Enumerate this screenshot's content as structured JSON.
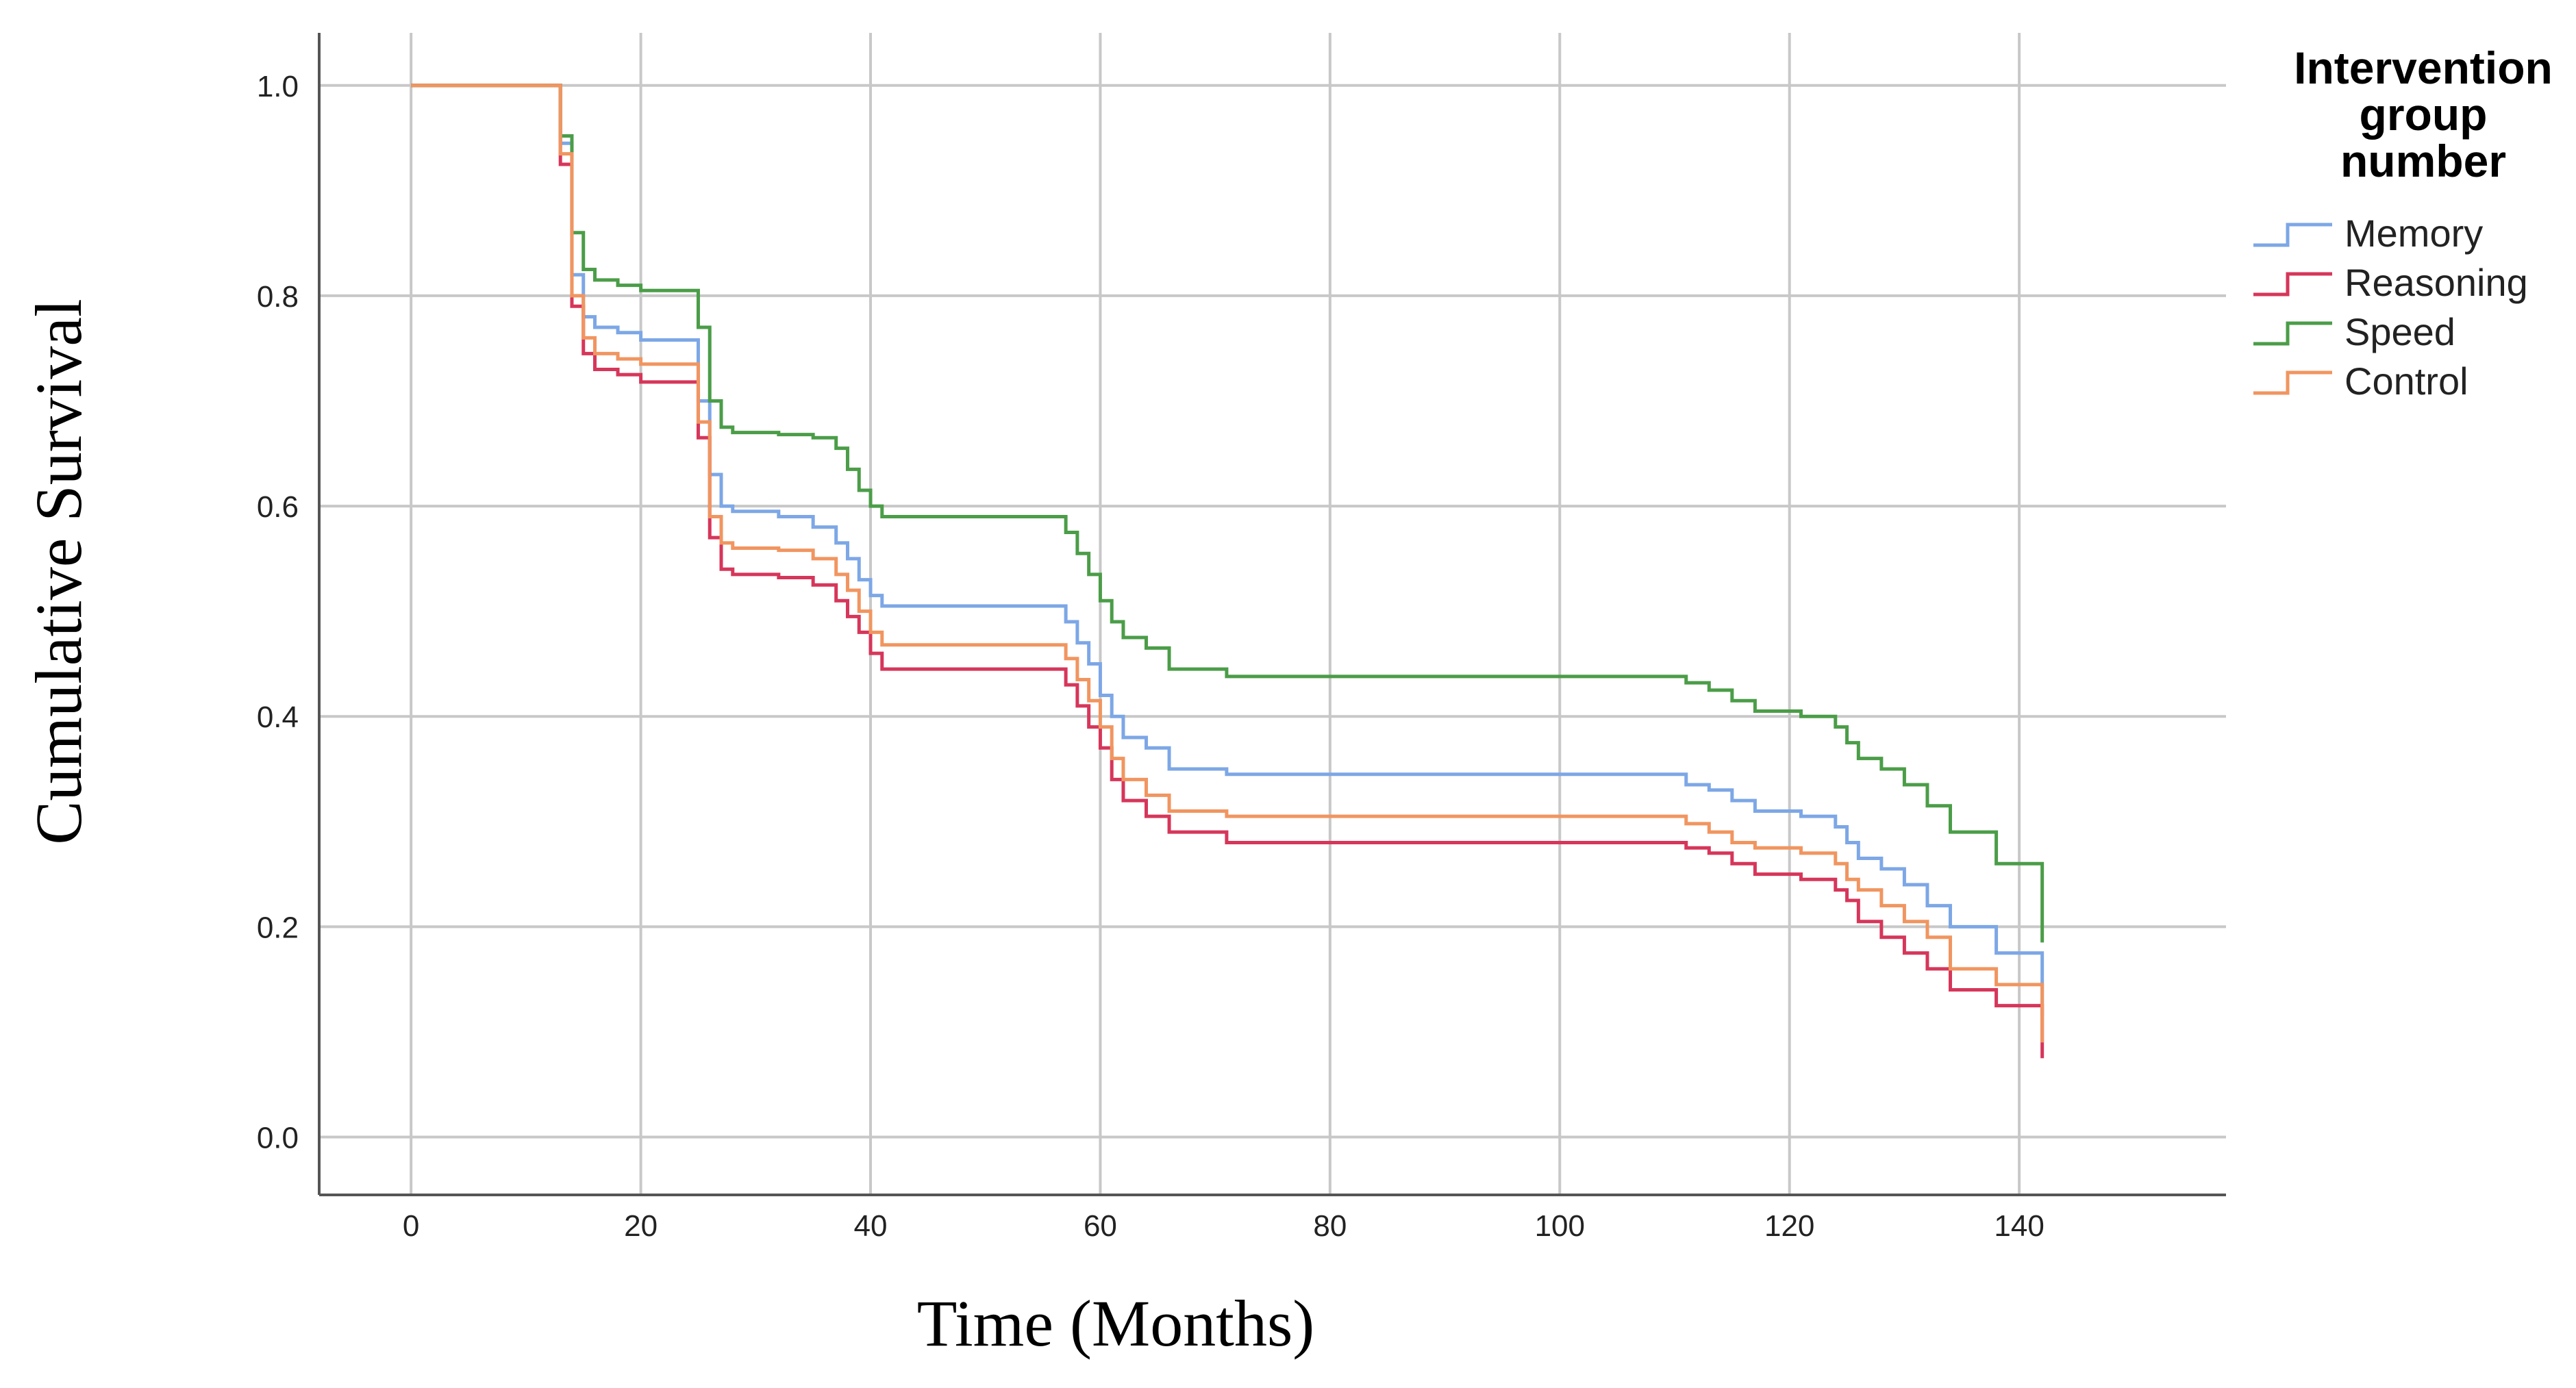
{
  "chart_data": {
    "type": "line",
    "step": true,
    "title": "",
    "xlabel": "Time (Months)",
    "ylabel": "Cumulative Survival",
    "xlim": [
      -8,
      158
    ],
    "ylim": [
      -0.055,
      1.05
    ],
    "xticks": [
      0,
      20,
      40,
      60,
      80,
      100,
      120,
      140
    ],
    "yticks": [
      0.0,
      0.2,
      0.4,
      0.6,
      0.8,
      1.0
    ],
    "xtick_labels": [
      "0",
      "20",
      "40",
      "60",
      "80",
      "100",
      "120",
      "140"
    ],
    "ytick_labels": [
      "0.0",
      "0.2",
      "0.4",
      "0.6",
      "0.8",
      "1.0"
    ],
    "grid": true,
    "legend": {
      "title_lines": [
        "Intervention",
        "group",
        "number"
      ],
      "placement": "right"
    },
    "series": [
      {
        "name": "Memory",
        "color": "#7da7e6",
        "x": [
          0,
          13,
          14,
          15,
          16,
          18,
          20,
          25,
          26,
          27,
          28,
          32,
          35,
          37,
          38,
          39,
          40,
          41,
          57,
          58,
          59,
          60,
          61,
          62,
          64,
          66,
          71,
          111,
          113,
          115,
          117,
          121,
          124,
          125,
          126,
          128,
          130,
          132,
          134,
          138,
          142
        ],
        "y": [
          1.0,
          0.945,
          0.82,
          0.78,
          0.77,
          0.765,
          0.758,
          0.7,
          0.63,
          0.6,
          0.595,
          0.59,
          0.58,
          0.565,
          0.55,
          0.53,
          0.515,
          0.505,
          0.49,
          0.47,
          0.45,
          0.42,
          0.4,
          0.38,
          0.37,
          0.35,
          0.345,
          0.335,
          0.33,
          0.32,
          0.31,
          0.305,
          0.295,
          0.28,
          0.265,
          0.255,
          0.24,
          0.22,
          0.2,
          0.175,
          0.115
        ]
      },
      {
        "name": "Reasoning",
        "color": "#d6365a",
        "x": [
          0,
          13,
          14,
          15,
          16,
          18,
          20,
          25,
          26,
          27,
          28,
          32,
          35,
          37,
          38,
          39,
          40,
          41,
          57,
          58,
          59,
          60,
          61,
          62,
          64,
          66,
          71,
          111,
          113,
          115,
          117,
          121,
          124,
          125,
          126,
          128,
          130,
          132,
          134,
          138,
          142
        ],
        "y": [
          1.0,
          0.925,
          0.79,
          0.745,
          0.73,
          0.725,
          0.718,
          0.665,
          0.57,
          0.54,
          0.535,
          0.532,
          0.525,
          0.51,
          0.495,
          0.48,
          0.46,
          0.445,
          0.43,
          0.41,
          0.39,
          0.37,
          0.34,
          0.32,
          0.305,
          0.29,
          0.28,
          0.275,
          0.27,
          0.26,
          0.25,
          0.245,
          0.235,
          0.225,
          0.205,
          0.19,
          0.175,
          0.16,
          0.14,
          0.125,
          0.075
        ]
      },
      {
        "name": "Speed",
        "color": "#4b9d48",
        "x": [
          0,
          13,
          14,
          15,
          16,
          18,
          20,
          25,
          26,
          27,
          28,
          32,
          35,
          37,
          38,
          39,
          40,
          41,
          57,
          58,
          59,
          60,
          61,
          62,
          64,
          66,
          71,
          111,
          113,
          115,
          117,
          121,
          124,
          125,
          126,
          128,
          130,
          132,
          134,
          138,
          142
        ],
        "y": [
          1.0,
          0.952,
          0.86,
          0.825,
          0.815,
          0.81,
          0.805,
          0.77,
          0.7,
          0.675,
          0.67,
          0.668,
          0.665,
          0.655,
          0.635,
          0.615,
          0.6,
          0.59,
          0.575,
          0.555,
          0.535,
          0.51,
          0.49,
          0.475,
          0.465,
          0.445,
          0.438,
          0.432,
          0.425,
          0.415,
          0.405,
          0.4,
          0.39,
          0.375,
          0.36,
          0.35,
          0.335,
          0.315,
          0.29,
          0.26,
          0.185
        ]
      },
      {
        "name": "Control",
        "color": "#f19560",
        "x": [
          0,
          13,
          14,
          15,
          16,
          18,
          20,
          25,
          26,
          27,
          28,
          32,
          35,
          37,
          38,
          39,
          40,
          41,
          57,
          58,
          59,
          60,
          61,
          62,
          64,
          66,
          71,
          111,
          113,
          115,
          117,
          121,
          124,
          125,
          126,
          128,
          130,
          132,
          134,
          138,
          142
        ],
        "y": [
          1.0,
          0.935,
          0.8,
          0.76,
          0.745,
          0.74,
          0.735,
          0.68,
          0.59,
          0.565,
          0.56,
          0.558,
          0.55,
          0.535,
          0.52,
          0.5,
          0.48,
          0.468,
          0.455,
          0.435,
          0.415,
          0.39,
          0.36,
          0.34,
          0.325,
          0.31,
          0.305,
          0.298,
          0.29,
          0.28,
          0.275,
          0.27,
          0.26,
          0.245,
          0.235,
          0.22,
          0.205,
          0.19,
          0.16,
          0.145,
          0.09
        ]
      }
    ]
  }
}
